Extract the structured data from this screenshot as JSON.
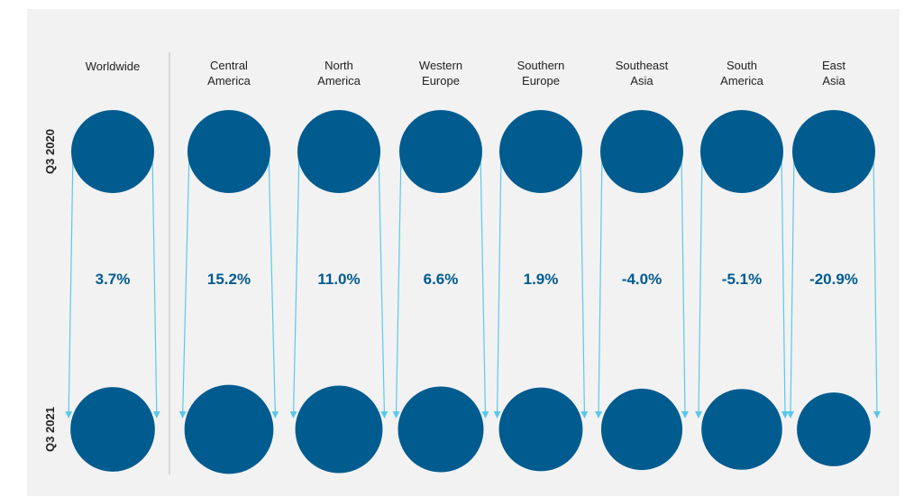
{
  "colors": {
    "bubble": "#005b8f",
    "arrow": "#5bc8ea",
    "change_text": "#005b8f",
    "divider": "#c8c8c8"
  },
  "chart_data": {
    "type": "bubble-comparison",
    "title": "",
    "row_labels": [
      "Q3 2020",
      "Q3 2021"
    ],
    "regions": [
      {
        "label_lines": [
          "Worldwide"
        ],
        "change": 3.7,
        "change_label": "3.7%"
      },
      {
        "label_lines": [
          "Central",
          "America"
        ],
        "change": 15.2,
        "change_label": "15.2%"
      },
      {
        "label_lines": [
          "North",
          "America"
        ],
        "change": 11.0,
        "change_label": "11.0%"
      },
      {
        "label_lines": [
          "Western",
          "Europe"
        ],
        "change": 6.6,
        "change_label": "6.6%"
      },
      {
        "label_lines": [
          "Southern",
          "Europe"
        ],
        "change": 1.9,
        "change_label": "1.9%"
      },
      {
        "label_lines": [
          "Southeast",
          "Asia"
        ],
        "change": -4.0,
        "change_label": "-4.0%"
      },
      {
        "label_lines": [
          "South",
          "America"
        ],
        "change": -5.1,
        "change_label": "-5.1%"
      },
      {
        "label_lines": [
          "East",
          "Asia"
        ],
        "change": -20.9,
        "change_label": "-20.9%"
      }
    ]
  }
}
